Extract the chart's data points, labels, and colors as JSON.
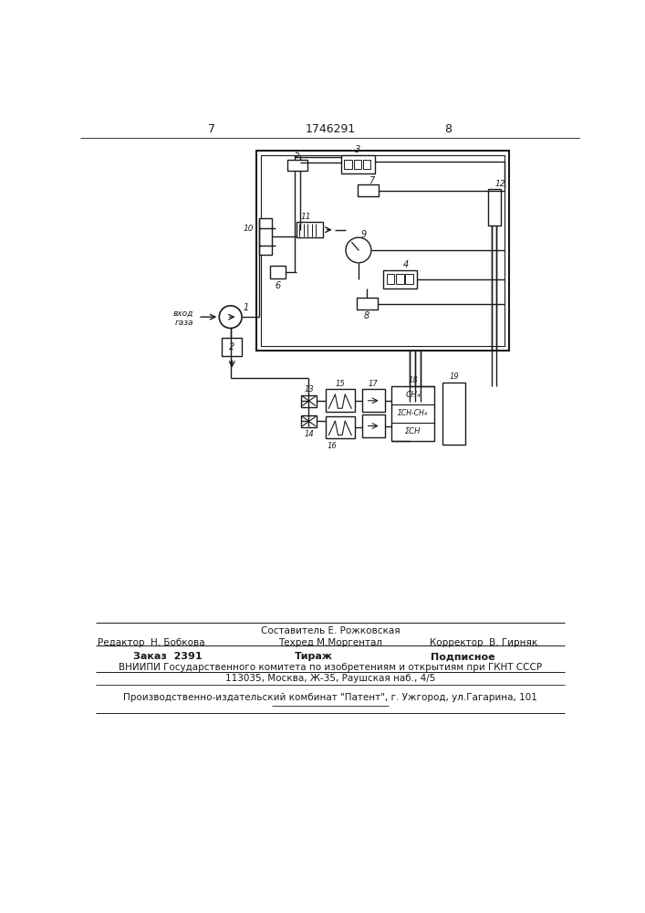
{
  "bg_color": "#ffffff",
  "line_color": "#1a1a1a",
  "page_number_left": "7",
  "page_number_center": "1746291",
  "page_number_right": "8",
  "footer_line1_left": "Редактор  Н. Бобкова",
  "footer_line1_center": "Составитель Е. Рожковская",
  "footer_line1_right": "Корректор  В. Гирняк",
  "footer_line2_center": "Техред М.Моргентал",
  "footer_order": "Заказ  2391",
  "footer_tirazh": "Тираж",
  "footer_podpisnoe": "Подписное",
  "footer_vniiipi": "ВНИИПИ Государственного комитета по изобретениям и открытиям при ГКНТ СССР",
  "footer_address": "113035, Москва, Ж-35, Раушская наб., 4/5",
  "footer_patent": "Производственно-издательский комбинат \"Патент\", г. Ужгород, ул.Гагаринa, 101",
  "label_vhod": "вход\nгаза"
}
